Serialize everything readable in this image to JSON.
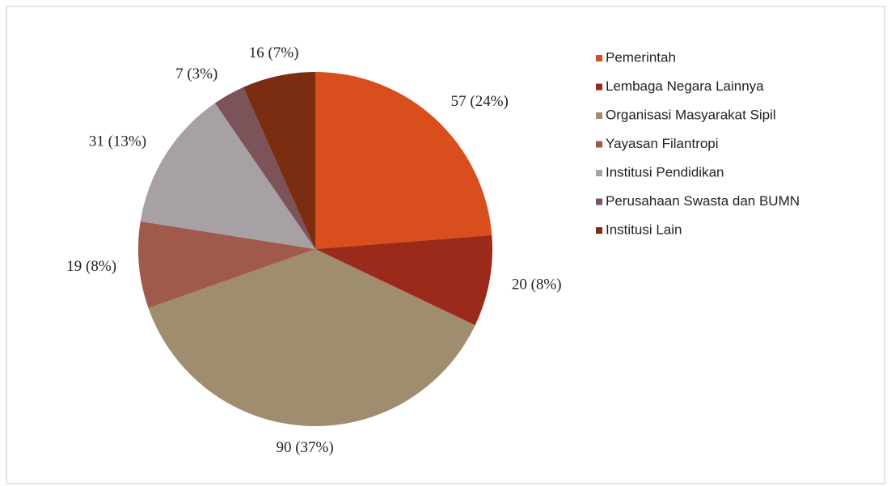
{
  "chart_data": {
    "type": "pie",
    "categories": [
      "Pemerintah",
      "Lembaga Negara Lainnya",
      "Organisasi Masyarakat Sipil",
      "Yayasan Filantropi",
      "Institusi Pendidikan",
      "Perusahaan Swasta dan BUMN",
      "Institusi Lain"
    ],
    "values": [
      57,
      20,
      90,
      19,
      31,
      7,
      16
    ],
    "value_labels": [
      "57 (24%)",
      "20 (8%)",
      "90 (37%)",
      "19 (8%)",
      "31 (13%)",
      "7 (3%)",
      "16 (7%)"
    ],
    "colors": [
      "#d84e1c",
      "#9c2a1b",
      "#a08d70",
      "#a05a4b",
      "#a7a0a4",
      "#7c5359",
      "#7a2d10"
    ],
    "legend": "right"
  }
}
